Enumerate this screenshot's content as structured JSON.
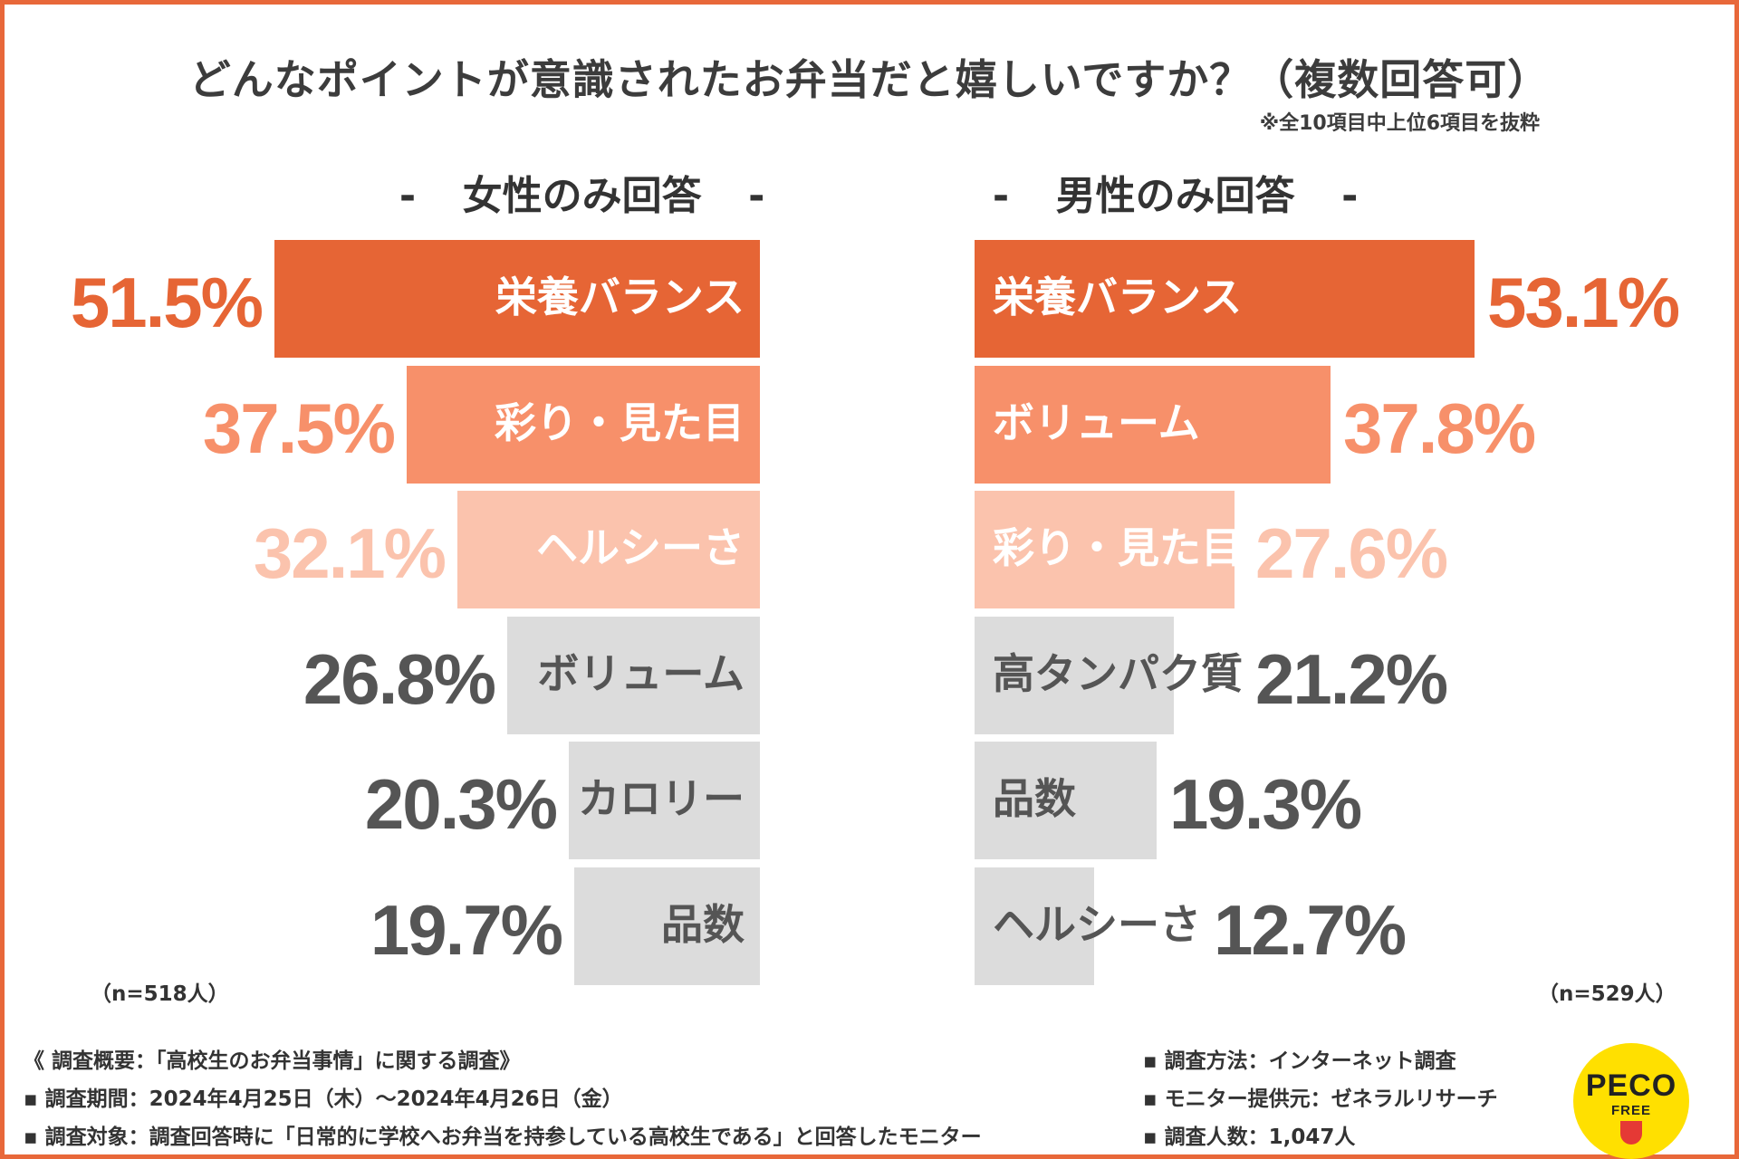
{
  "title": "どんなポイントが意識されたお弁当だと嬉しいですか？（複数回答可）",
  "note": "※全10項目中上位6項目を抜粋",
  "colors": {
    "border": "#e8683a",
    "rank1": "#e66535",
    "rank2": "#f7906a",
    "rank3": "#fbc3ad",
    "other_bar": "#dcdcdc",
    "other_text": "#555555"
  },
  "chart_data": [
    {
      "type": "bar",
      "title": "女性のみ回答",
      "orientation": "horizontal",
      "direction": "right-to-left",
      "n_label": "（n=518人）",
      "categories": [
        "栄養バランス",
        "彩り・見た目",
        "ヘルシーさ",
        "ボリューム",
        "カロリー",
        "品数"
      ],
      "values": [
        51.5,
        37.5,
        32.1,
        26.8,
        20.3,
        19.7
      ],
      "value_labels": [
        "51.5%",
        "37.5%",
        "32.1%",
        "26.8%",
        "20.3%",
        "19.7%"
      ],
      "category_labels": [
        "栄養バランス",
        "彩り・見た目",
        "ヘルシーさ",
        "ボリューム",
        "カロリー",
        "品数"
      ],
      "xlim": [
        0,
        100
      ]
    },
    {
      "type": "bar",
      "title": "男性のみ回答",
      "orientation": "horizontal",
      "direction": "left-to-right",
      "n_label": "（n=529人）",
      "categories": [
        "栄養バランス",
        "ボリューム",
        "彩り・見た目",
        "高タンパク質",
        "品数",
        "ヘルシーさ"
      ],
      "values": [
        53.1,
        37.8,
        27.6,
        21.2,
        19.3,
        12.7
      ],
      "value_labels": [
        "53.1%",
        "37.8%",
        "27.6%",
        "21.2%",
        "19.3%",
        "12.7%"
      ],
      "category_labels": [
        "栄養バランス",
        "ボリューム",
        "彩り・見た目",
        "高タンパク質",
        "品数",
        "ヘルシーさ"
      ],
      "xlim": [
        0,
        100
      ]
    }
  ],
  "footer": {
    "left": [
      "《 調査概要：「高校生のお弁当事情」に関する調査》",
      "▪ 調査期間：2024年4月25日（木）～2024年4月26日（金）",
      "▪ 調査対象：調査回答時に「日常的に学校へお弁当を持参している高校生である」と回答したモニター"
    ],
    "right": [
      "▪ 調査方法：インターネット調査",
      "▪ モニター提供元：ゼネラルリサーチ",
      "▪ 調査人数：1,047人"
    ]
  },
  "logo": {
    "top": "PECO",
    "bottom": "FREE"
  },
  "dash": "-"
}
